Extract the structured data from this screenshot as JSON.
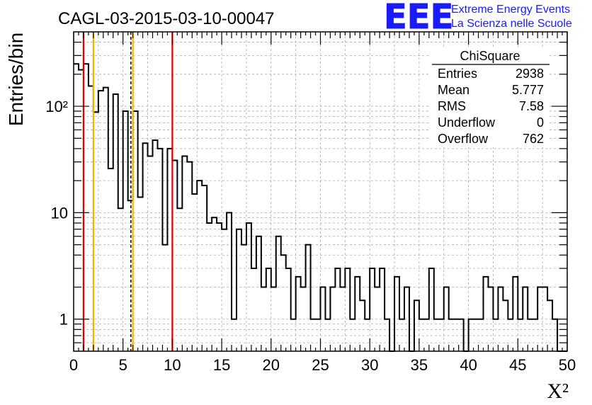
{
  "chart_data": {
    "type": "histogram",
    "title": "CAGL-03-2015-03-10-00047",
    "xlabel": "X²",
    "ylabel": "Entries/bin",
    "xlim": [
      0,
      50
    ],
    "ylim": [
      0.5,
      500
    ],
    "yscale": "log",
    "grid": true,
    "bin_width": 0.5,
    "x_ticks": [
      0,
      5,
      10,
      15,
      20,
      25,
      30,
      35,
      40,
      45,
      50
    ],
    "y_ticks": [
      {
        "value": 1,
        "label": "1"
      },
      {
        "value": 10,
        "label": "10"
      },
      {
        "value": 100,
        "label": "10²"
      }
    ],
    "counts": [
      250,
      220,
      250,
      155,
      88,
      140,
      150,
      26,
      130,
      11,
      90,
      13,
      90,
      14,
      45,
      34,
      48,
      40,
      5,
      40,
      31,
      11,
      34,
      30,
      15,
      20,
      18,
      8,
      9,
      8,
      7,
      10,
      1,
      7,
      5,
      8,
      3,
      6,
      2,
      3,
      2,
      6,
      4,
      3,
      1,
      2.5,
      2,
      5,
      1,
      1,
      2,
      1,
      2,
      3,
      2,
      3,
      1,
      2.5,
      1.5,
      1,
      3,
      2,
      3,
      1,
      0,
      2.5,
      1,
      2,
      0,
      1.5,
      1,
      1,
      3,
      1,
      1,
      2,
      1,
      1,
      1,
      0,
      1,
      1,
      1,
      2.5,
      2,
      1,
      2,
      1.5,
      1,
      2.5,
      1,
      2,
      1,
      1,
      2,
      2,
      1.5,
      1,
      0,
      0
    ],
    "vertical_lines": [
      {
        "x": 1,
        "color": "#dd0000",
        "style": "solid"
      },
      {
        "x": 2,
        "color": "#f0b400",
        "style": "solid"
      },
      {
        "x": 5.8,
        "color": "#000000",
        "style": "dashed"
      },
      {
        "x": 6,
        "color": "#f0b400",
        "style": "solid"
      },
      {
        "x": 10,
        "color": "#dd0000",
        "style": "solid"
      }
    ],
    "stats_box": {
      "title": "ChiSquare",
      "rows": [
        {
          "label": "Entries",
          "value": "2938"
        },
        {
          "label": "Mean",
          "value": "5.777"
        },
        {
          "label": "RMS",
          "value": "7.58"
        },
        {
          "label": "Underflow",
          "value": "0"
        },
        {
          "label": "Overflow",
          "value": "762"
        }
      ]
    }
  },
  "logo": {
    "text": "EEE",
    "line1": "Extreme Energy Events",
    "line2": "La Scienza nelle Scuole",
    "color": "#1a1aff"
  }
}
